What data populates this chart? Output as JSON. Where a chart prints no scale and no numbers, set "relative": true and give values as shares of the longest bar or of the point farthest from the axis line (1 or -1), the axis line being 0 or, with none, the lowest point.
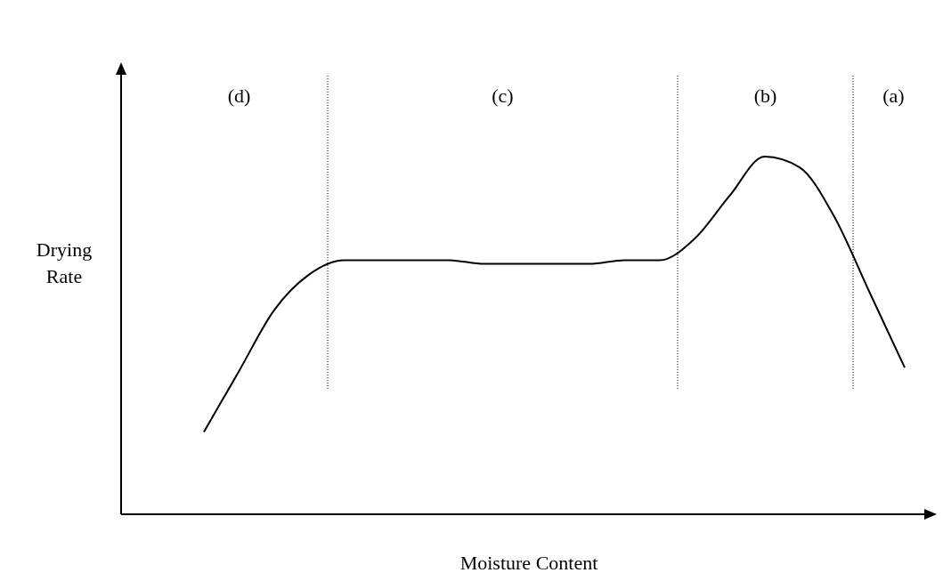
{
  "chart_data": {
    "type": "line",
    "relative": true,
    "xlabel": "Moisture Content",
    "ylabel": "Drying Rate",
    "categories": [
      null,
      null,
      null,
      null,
      null,
      null,
      null,
      null,
      null,
      null,
      null,
      null,
      null,
      null,
      null,
      null,
      null,
      null,
      null,
      null,
      null
    ],
    "series": [
      {
        "color": "#000000",
        "values": [
          0.23,
          0.4,
          0.57,
          0.67,
          0.71,
          0.71,
          0.71,
          0.71,
          0.7,
          0.7,
          0.7,
          0.7,
          0.71,
          0.71,
          0.77,
          0.89,
          1,
          0.97,
          0.83,
          0.62,
          0.41
        ]
      }
    ],
    "annotations": [
      "(d)",
      "(c)",
      "(b)",
      "(a)"
    ],
    "marker": "none",
    "line_style": "solid"
  }
}
